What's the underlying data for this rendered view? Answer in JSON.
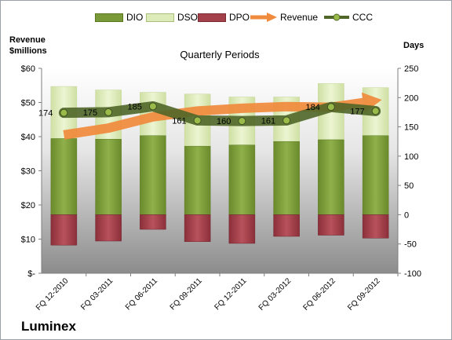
{
  "chart_data": {
    "type": "bar",
    "company": "Luminex",
    "title": "Quarterly Periods",
    "left_axis_label": "Revenue\n$millions",
    "right_axis_label": "Days",
    "categories": [
      "FQ 12-2010",
      "FQ 03-2011",
      "FQ 06-2011",
      "FQ 09-2011",
      "FQ 12-2011",
      "FQ 03-2012",
      "FQ 06-2012",
      "FQ 09-2012"
    ],
    "left_axis": {
      "min": 0,
      "max": 60,
      "step": 10,
      "tick_labels": [
        "$-",
        "$10",
        "$20",
        "$30",
        "$40",
        "$50",
        "$60"
      ]
    },
    "right_axis": {
      "min": -100,
      "max": 250,
      "step": 50,
      "tick_labels": [
        "-100",
        "-50",
        "0",
        "50",
        "100",
        "150",
        "200",
        "250"
      ]
    },
    "series": [
      {
        "name": "DIO",
        "type": "stacked-bar",
        "axis": "right",
        "color": "#7a9a3a",
        "values": [
          130,
          129,
          135,
          117,
          119,
          125,
          128,
          135
        ]
      },
      {
        "name": "DSO",
        "type": "stacked-bar",
        "axis": "right",
        "color": "#dcebb8",
        "values": [
          89,
          84,
          74,
          89,
          82,
          76,
          96,
          82
        ]
      },
      {
        "name": "DPO",
        "type": "stacked-bar",
        "axis": "right",
        "color": "#a4404a",
        "values": [
          -52,
          -45,
          -25,
          -46,
          -49,
          -37,
          -35,
          -40
        ]
      },
      {
        "name": "Revenue",
        "type": "arrow-line",
        "axis": "left",
        "color": "#f08a3c",
        "values": [
          40.5,
          42.5,
          45.8,
          47.5,
          48.3,
          48.8,
          48.6,
          50.5
        ]
      },
      {
        "name": "CCC",
        "type": "line",
        "axis": "right",
        "color": "#4f6628",
        "values": [
          174,
          175,
          185,
          161,
          160,
          161,
          184,
          177
        ]
      }
    ],
    "data_labels": [
      "174",
      "175",
      "185",
      "161",
      "160",
      "161",
      "184",
      "177"
    ]
  }
}
